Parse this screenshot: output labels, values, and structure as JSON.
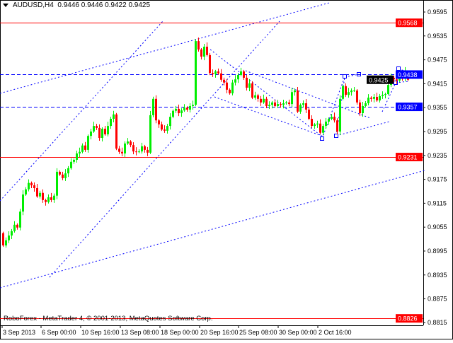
{
  "header": {
    "symbol": "AUDUSD,H4",
    "ohlc": "0.9446 0.9446 0.9422 0.9425"
  },
  "copyright": "RoboForex - MetaTrader 4, © 2001-2013, MetaQuotes Software Corp.",
  "colors": {
    "bull": "#00ee00",
    "bear": "#ff0000",
    "level_red": "#ff0000",
    "level_blue": "#0000ff",
    "trend": "#0000ff",
    "current": "#000000"
  },
  "chart_data": {
    "type": "candlestick",
    "title": "AUDUSD,H4",
    "x_tick_labels": [
      "3 Sep 2013",
      "6 Sep 00:00",
      "10 Sep 16:00",
      "13 Sep 08:00",
      "18 Sep 00:00",
      "20 Sep 16:00",
      "25 Sep 08:00",
      "30 Sep 00:00",
      "2 Oct 16:00"
    ],
    "y_tick_labels": [
      "0.9595",
      "0.9535",
      "0.9475",
      "0.9415",
      "0.9355",
      "0.9295",
      "0.9235",
      "0.9175",
      "0.9115",
      "0.9055",
      "0.8995",
      "0.8935",
      "0.8875",
      "0.8815"
    ],
    "ylim": [
      0.88,
      0.9665
    ],
    "grid": false,
    "first_open": 0.904,
    "last_candle": {
      "open": 0.9446,
      "high": 0.9446,
      "low": 0.9422,
      "close": 0.9425
    },
    "closes": [
      0.9009,
      0.9022,
      0.9034,
      0.9045,
      0.9061,
      0.9054,
      0.9094,
      0.9137,
      0.915,
      0.9166,
      0.916,
      0.9153,
      0.9132,
      0.9141,
      0.9123,
      0.9118,
      0.913,
      0.9123,
      0.9134,
      0.9194,
      0.9187,
      0.9178,
      0.919,
      0.9203,
      0.9219,
      0.9224,
      0.924,
      0.9244,
      0.926,
      0.9249,
      0.9284,
      0.9295,
      0.9309,
      0.9304,
      0.9279,
      0.9302,
      0.9288,
      0.9309,
      0.9327,
      0.9338,
      0.9252,
      0.9244,
      0.924,
      0.9265,
      0.927,
      0.9261,
      0.9245,
      0.9244,
      0.9245,
      0.9258,
      0.9249,
      0.9242,
      0.9336,
      0.9377,
      0.9323,
      0.9313,
      0.93,
      0.9297,
      0.9309,
      0.9332,
      0.9347,
      0.9352,
      0.9341,
      0.9348,
      0.9355,
      0.935,
      0.9359,
      0.9362,
      0.9522,
      0.9501,
      0.9483,
      0.9508,
      0.9487,
      0.9442,
      0.9439,
      0.9446,
      0.9441,
      0.9425,
      0.9418,
      0.94,
      0.9391,
      0.9418,
      0.9426,
      0.9437,
      0.9446,
      0.943,
      0.9405,
      0.9416,
      0.938,
      0.9386,
      0.9377,
      0.9368,
      0.9377,
      0.9359,
      0.9362,
      0.9368,
      0.9359,
      0.9364,
      0.9362,
      0.9366,
      0.9368,
      0.9364,
      0.9394,
      0.9398,
      0.9345,
      0.9362,
      0.9366,
      0.935,
      0.9327,
      0.9309,
      0.9313,
      0.9315,
      0.9292,
      0.9309,
      0.932,
      0.9327,
      0.9332,
      0.9323,
      0.9295,
      0.9377,
      0.9409,
      0.9387,
      0.9394,
      0.9398,
      0.9398,
      0.9368,
      0.9341,
      0.9359,
      0.9366,
      0.938,
      0.9377,
      0.9382,
      0.9373,
      0.9384,
      0.9387,
      0.9389,
      0.9412,
      0.943,
      0.9426,
      0.9423,
      0.943,
      0.9428,
      0.9446,
      0.9425
    ],
    "levels": [
      {
        "price": "0.9568",
        "style": "solid",
        "color": "#ff0000"
      },
      {
        "price": "0.9438",
        "style": "dashed",
        "color": "#0000ff"
      },
      {
        "price": "0.9357",
        "style": "dashed",
        "color": "#0000ff"
      },
      {
        "price": "0.9231",
        "style": "solid",
        "color": "#ff0000"
      },
      {
        "price": "0.8826",
        "style": "solid",
        "color": "#ff0000"
      }
    ],
    "current_price": "0.9425"
  }
}
